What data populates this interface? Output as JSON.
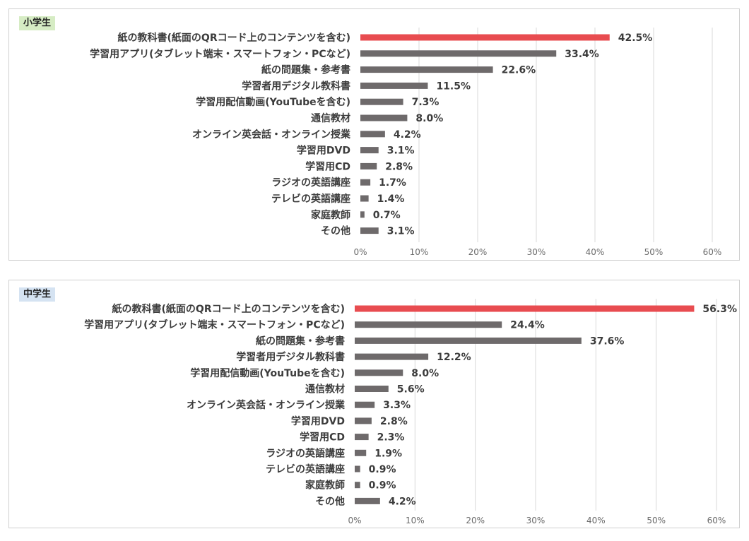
{
  "colors": {
    "highlight_bar": "#e84c50",
    "bar": "#6e6a6b",
    "grid": "#d9d9d9",
    "tag_bg_elementary": "#d6ecc4",
    "tag_bg_junior": "#d5e3f2"
  },
  "chart_data": [
    {
      "type": "bar",
      "orientation": "horizontal",
      "title": "小学生",
      "categories": [
        "紙の教科書(紙面のQRコード上のコンテンツを含む)",
        "学習用アプリ(タブレット端末・スマートフォン・PCなど)",
        "紙の問題集・参考書",
        "学習者用デジタル教科書",
        "学習用配信動画(YouTubeを含む)",
        "通信教材",
        "オンライン英会話・オンライン授業",
        "学習用DVD",
        "学習用CD",
        "ラジオの英語講座",
        "テレビの英語講座",
        "家庭教師",
        "その他"
      ],
      "values": [
        42.5,
        33.4,
        22.6,
        11.5,
        7.3,
        8.0,
        4.2,
        3.1,
        2.8,
        1.7,
        1.4,
        0.7,
        3.1
      ],
      "value_labels": [
        "42.5%",
        "33.4%",
        "22.6%",
        "11.5%",
        "7.3%",
        "8.0%",
        "4.2%",
        "3.1%",
        "2.8%",
        "1.7%",
        "1.4%",
        "0.7%",
        "3.1%"
      ],
      "highlight_index": 0,
      "xlim": [
        0,
        60
      ],
      "ticks": [
        0,
        10,
        20,
        30,
        40,
        50,
        60
      ],
      "tick_labels": [
        "0%",
        "10%",
        "20%",
        "30%",
        "40%",
        "50%",
        "60%"
      ],
      "grid": true
    },
    {
      "type": "bar",
      "orientation": "horizontal",
      "title": "中学生",
      "categories": [
        "紙の教科書(紙面のQRコード上のコンテンツを含む)",
        "学習用アプリ(タブレット端末・スマートフォン・PCなど)",
        "紙の問題集・参考書",
        "学習者用デジタル教科書",
        "学習用配信動画(YouTubeを含む)",
        "通信教材",
        "オンライン英会話・オンライン授業",
        "学習用DVD",
        "学習用CD",
        "ラジオの英語講座",
        "テレビの英語講座",
        "家庭教師",
        "その他"
      ],
      "values": [
        56.3,
        24.4,
        37.6,
        12.2,
        8.0,
        5.6,
        3.3,
        2.8,
        2.3,
        1.9,
        0.9,
        0.9,
        4.2
      ],
      "value_labels": [
        "56.3%",
        "24.4%",
        "37.6%",
        "12.2%",
        "8.0%",
        "5.6%",
        "3.3%",
        "2.8%",
        "2.3%",
        "1.9%",
        "0.9%",
        "0.9%",
        "4.2%"
      ],
      "highlight_index": 0,
      "xlim": [
        0,
        60
      ],
      "ticks": [
        0,
        10,
        20,
        30,
        40,
        50,
        60
      ],
      "tick_labels": [
        "0%",
        "10%",
        "20%",
        "30%",
        "40%",
        "50%",
        "60%"
      ],
      "grid": true
    }
  ]
}
